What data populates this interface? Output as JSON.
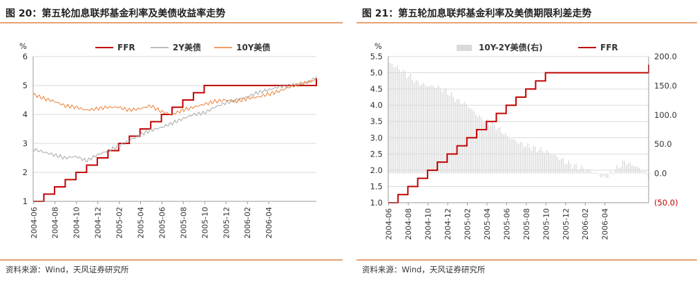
{
  "charts": [
    {
      "title": "图 20：第五轮加息联邦基金利率及美债收益率走势",
      "source": "资料来源：Wind，天风证券研究所",
      "chart_data": {
        "type": "line",
        "ylabel": "%",
        "ylim": [
          1,
          6
        ],
        "yticks": [
          "1",
          "2",
          "3",
          "4",
          "5",
          "6"
        ],
        "xlim": [
          0,
          26.5
        ],
        "xticks": [
          "2004-06",
          "2004-08",
          "2004-10",
          "2004-12",
          "2005-02",
          "2005-04",
          "2005-06",
          "2005-08",
          "2005-10",
          "2005-12",
          "2006-02",
          "2006-04"
        ],
        "legend": [
          "FFR",
          "2Y美债",
          "10Y美债"
        ],
        "series": [
          {
            "name": "FFR",
            "color": "#C00000",
            "kind": "step",
            "x": [
              0,
              1,
              2,
              3,
              4,
              5,
              6,
              7,
              8,
              9,
              10,
              11,
              12,
              13,
              14,
              15,
              16,
              17,
              18,
              19,
              20,
              21,
              22,
              23,
              24,
              25,
              26,
              26.5
            ],
            "values": [
              1.0,
              1.25,
              1.5,
              1.75,
              2.0,
              2.25,
              2.5,
              2.75,
              3.0,
              3.25,
              3.5,
              3.75,
              4.0,
              4.25,
              4.5,
              4.75,
              5.0,
              5.0,
              5.0,
              5.0,
              5.0,
              5.0,
              5.0,
              5.0,
              5.0,
              5.0,
              5.0,
              5.25
            ]
          },
          {
            "name": "2Y美债",
            "color": "#A6A6A6",
            "kind": "line",
            "x": [
              0,
              1,
              2,
              3,
              4,
              5,
              6,
              7,
              8,
              9,
              10,
              11,
              12,
              13,
              14,
              15,
              16,
              17,
              18,
              19,
              20,
              21,
              22,
              23,
              24,
              25,
              26,
              26.5
            ],
            "values": [
              2.8,
              2.7,
              2.6,
              2.5,
              2.55,
              2.4,
              2.6,
              2.75,
              2.9,
              3.1,
              3.3,
              3.45,
              3.55,
              3.7,
              3.85,
              4.0,
              4.05,
              4.25,
              4.4,
              4.5,
              4.6,
              4.75,
              4.85,
              4.95,
              5.0,
              5.05,
              5.15,
              5.3
            ]
          },
          {
            "name": "10Y美债",
            "color": "#ED7D31",
            "kind": "line",
            "x": [
              0,
              1,
              2,
              3,
              4,
              5,
              6,
              7,
              8,
              9,
              10,
              11,
              12,
              13,
              14,
              15,
              16,
              17,
              18,
              19,
              20,
              21,
              22,
              23,
              24,
              25,
              26,
              26.5
            ],
            "values": [
              4.7,
              4.55,
              4.45,
              4.3,
              4.25,
              4.15,
              4.2,
              4.25,
              4.25,
              4.15,
              4.2,
              4.3,
              4.1,
              4.0,
              4.15,
              4.25,
              4.35,
              4.45,
              4.5,
              4.45,
              4.55,
              4.6,
              4.7,
              4.8,
              4.95,
              5.05,
              5.15,
              5.2
            ]
          }
        ]
      }
    },
    {
      "title": "图 21：第五轮加息联邦基金利率及美债期限利差走势",
      "source": "资料来源：Wind，天风证券研究所",
      "chart_data": {
        "type": "bar",
        "ylabel": "%",
        "ylim": [
          1.0,
          5.5
        ],
        "yticks": [
          "1.0",
          "1.5",
          "2.0",
          "2.5",
          "3.0",
          "3.5",
          "4.0",
          "4.5",
          "5.0",
          "5.5"
        ],
        "y2lim": [
          -50,
          200
        ],
        "y2ticks": [
          "(50.0)",
          "0.0",
          "50.0",
          "100.0",
          "150.0",
          "200.0"
        ],
        "xlim": [
          0,
          26.5
        ],
        "xticks": [
          "2004-06",
          "2004-08",
          "2004-10",
          "2004-12",
          "2005-02",
          "2005-04",
          "2005-06",
          "2005-08",
          "2005-10",
          "2005-12",
          "2006-02",
          "2006-04"
        ],
        "legend": [
          "10Y-2Y美债(右)",
          "FFR"
        ],
        "series": [
          {
            "name": "10Y-2Y美债(右)",
            "color": "#D9D9D9",
            "kind": "bar",
            "axis": "right",
            "x": [
              0,
              1,
              2,
              3,
              4,
              5,
              6,
              7,
              8,
              9,
              10,
              11,
              12,
              13,
              14,
              15,
              16,
              17,
              18,
              19,
              20,
              21,
              22,
              23,
              24,
              25,
              26,
              26.5
            ],
            "values": [
              190,
              180,
              168,
              155,
              150,
              148,
              140,
              125,
              118,
              100,
              88,
              80,
              65,
              55,
              48,
              42,
              38,
              30,
              20,
              12,
              8,
              2,
              -8,
              5,
              20,
              14,
              4,
              -5
            ]
          },
          {
            "name": "FFR",
            "color": "#C00000",
            "kind": "step",
            "axis": "left",
            "x": [
              0,
              1,
              2,
              3,
              4,
              5,
              6,
              7,
              8,
              9,
              10,
              11,
              12,
              13,
              14,
              15,
              16,
              17,
              18,
              19,
              20,
              21,
              22,
              23,
              24,
              25,
              26,
              26.5
            ],
            "values": [
              1.0,
              1.25,
              1.5,
              1.75,
              2.0,
              2.25,
              2.5,
              2.75,
              3.0,
              3.25,
              3.5,
              3.75,
              4.0,
              4.25,
              4.5,
              4.75,
              5.0,
              5.0,
              5.0,
              5.0,
              5.0,
              5.0,
              5.0,
              5.0,
              5.0,
              5.0,
              5.0,
              5.25
            ]
          }
        ]
      }
    }
  ]
}
